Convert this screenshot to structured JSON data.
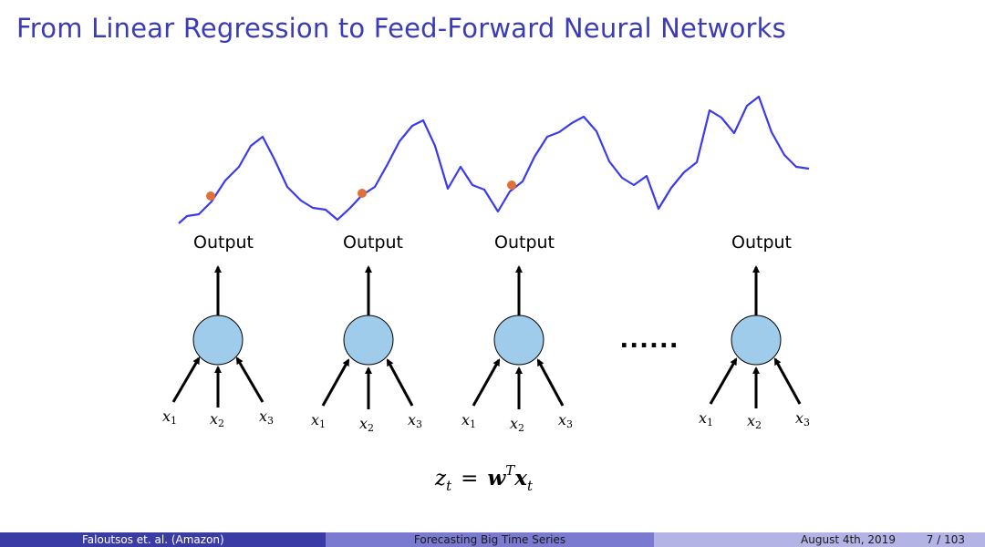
{
  "slide": {
    "title": "From Linear Regression to Feed-Forward Neural Networks"
  },
  "diagram": {
    "output_label": "Output",
    "inputs": [
      "x",
      "x",
      "x"
    ],
    "input_subscripts": [
      "1",
      "2",
      "3"
    ],
    "ellipsis": "......",
    "equation": {
      "lhs": "z",
      "lhs_sub": "t",
      "eq": "=",
      "w": "w",
      "sup": "T",
      "x": "x",
      "x_sub": "t"
    },
    "colors": {
      "series": "#3a3aee",
      "node_fill": "#9fcceb",
      "marker": "#e0703a"
    }
  },
  "footer": {
    "authors": "Faloutsos et. al. (Amazon)",
    "talk_title": "Forecasting Big Time Series",
    "date": "August 4th, 2019",
    "page": "7 / 103"
  }
}
